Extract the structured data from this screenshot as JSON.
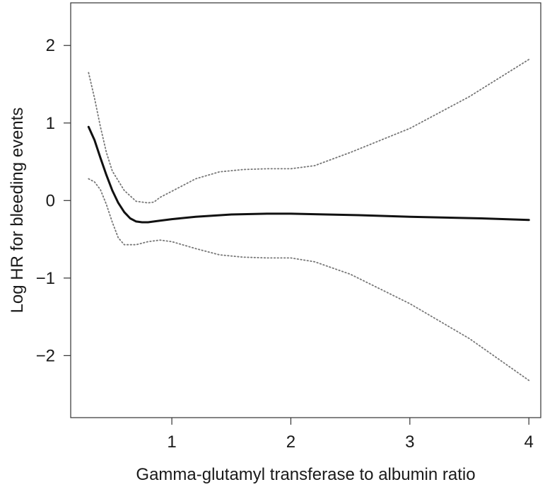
{
  "chart_data": {
    "type": "line",
    "title": "",
    "xlabel": "Gamma-glutamyl transferase to albumin ratio",
    "ylabel": "Log HR for bleeding events",
    "xlim": [
      0.15,
      4.1
    ],
    "ylim": [
      -2.8,
      2.55
    ],
    "x_ticks": [
      1,
      2,
      3,
      4
    ],
    "y_ticks": [
      -2,
      -1,
      0,
      1,
      2
    ],
    "x_tick_labels": [
      "1",
      "2",
      "3",
      "4"
    ],
    "y_tick_labels": [
      "−2",
      "−1",
      "0",
      "1",
      "2"
    ],
    "grid": false,
    "legend": "none",
    "series": [
      {
        "style": "solid",
        "color": "#111111",
        "x": [
          0.3,
          0.35,
          0.4,
          0.45,
          0.5,
          0.55,
          0.6,
          0.65,
          0.7,
          0.75,
          0.8,
          0.85,
          0.9,
          1.0,
          1.2,
          1.5,
          1.8,
          2.0,
          2.3,
          2.6,
          3.0,
          3.3,
          3.6,
          4.0
        ],
        "y": [
          0.95,
          0.78,
          0.55,
          0.33,
          0.13,
          -0.03,
          -0.15,
          -0.23,
          -0.27,
          -0.28,
          -0.28,
          -0.27,
          -0.26,
          -0.24,
          -0.21,
          -0.18,
          -0.17,
          -0.17,
          -0.18,
          -0.19,
          -0.21,
          -0.22,
          -0.23,
          -0.25
        ]
      },
      {
        "style": "dotted",
        "color": "#777777",
        "x": [
          0.3,
          0.35,
          0.4,
          0.45,
          0.5,
          0.6,
          0.7,
          0.8,
          0.85,
          0.9,
          1.0,
          1.2,
          1.4,
          1.6,
          1.8,
          2.0,
          2.2,
          2.5,
          3.0,
          3.5,
          4.0
        ],
        "y": [
          1.65,
          1.32,
          0.95,
          0.62,
          0.38,
          0.13,
          -0.01,
          -0.03,
          -0.02,
          0.04,
          0.12,
          0.28,
          0.37,
          0.4,
          0.41,
          0.41,
          0.45,
          0.62,
          0.93,
          1.34,
          1.82
        ]
      },
      {
        "style": "dotted",
        "color": "#777777",
        "x": [
          0.3,
          0.35,
          0.4,
          0.45,
          0.5,
          0.55,
          0.6,
          0.7,
          0.8,
          0.9,
          1.0,
          1.2,
          1.4,
          1.6,
          1.8,
          2.0,
          2.2,
          2.5,
          3.0,
          3.5,
          4.0
        ],
        "y": [
          0.28,
          0.24,
          0.14,
          -0.05,
          -0.28,
          -0.48,
          -0.57,
          -0.57,
          -0.53,
          -0.51,
          -0.53,
          -0.62,
          -0.7,
          -0.73,
          -0.74,
          -0.74,
          -0.79,
          -0.95,
          -1.33,
          -1.78,
          -2.32
        ]
      }
    ]
  }
}
